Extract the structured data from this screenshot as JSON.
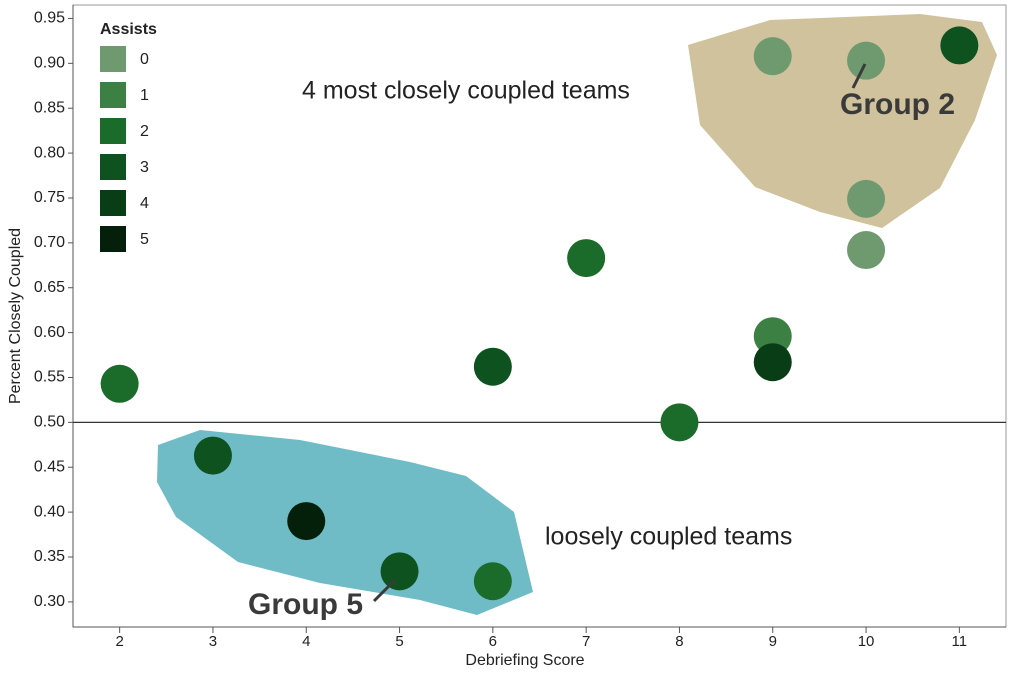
{
  "chart_data": {
    "type": "scatter",
    "x_label": "Debriefing Score",
    "y_label": "Percent Closely Coupled",
    "x": [
      2,
      3,
      4,
      5,
      6,
      6,
      7,
      8,
      9,
      9,
      9,
      10,
      10,
      10,
      11
    ],
    "y": [
      0.543,
      0.463,
      0.39,
      0.334,
      0.323,
      0.562,
      0.683,
      0.5,
      0.908,
      0.596,
      0.567,
      0.903,
      0.749,
      0.692,
      0.92
    ],
    "assists": [
      2,
      3,
      5,
      3,
      2,
      3,
      2,
      2,
      0,
      1,
      4,
      0,
      0,
      0,
      3
    ],
    "legend": {
      "title": "Assists",
      "items": [
        {
          "label": 0,
          "color": "#6f9a70"
        },
        {
          "label": 1,
          "color": "#3d8043"
        },
        {
          "label": 2,
          "color": "#1b6b2a"
        },
        {
          "label": 3,
          "color": "#0e5220"
        },
        {
          "label": 4,
          "color": "#083d15"
        },
        {
          "label": 5,
          "color": "#04200b"
        }
      ]
    },
    "xlim": [
      1.5,
      11.5
    ],
    "xticks": [
      2,
      3,
      4,
      5,
      6,
      7,
      8,
      9,
      10,
      11
    ],
    "ylim": [
      0.272,
      0.965
    ],
    "yticks": [
      {
        "value": 0.3,
        "label": "0.30"
      },
      {
        "value": 0.35,
        "label": "0.35"
      },
      {
        "value": 0.4,
        "label": "0.40"
      },
      {
        "value": 0.45,
        "label": "0.45"
      },
      {
        "value": 0.5,
        "label": "0.50"
      },
      {
        "value": 0.55,
        "label": "0.55"
      },
      {
        "value": 0.6,
        "label": "0.60"
      },
      {
        "value": 0.65,
        "label": "0.65"
      },
      {
        "value": 0.7,
        "label": "0.70"
      },
      {
        "value": 0.75,
        "label": "0.75"
      },
      {
        "value": 0.8,
        "label": "0.80"
      },
      {
        "value": 0.85,
        "label": "0.85"
      },
      {
        "value": 0.9,
        "label": "0.90"
      },
      {
        "value": 0.95,
        "label": "0.95"
      }
    ],
    "reference_line": 0.5,
    "annotations": [
      "4 most closely coupled teams",
      "loosely coupled teams",
      "Group 2",
      "Group 5"
    ]
  }
}
